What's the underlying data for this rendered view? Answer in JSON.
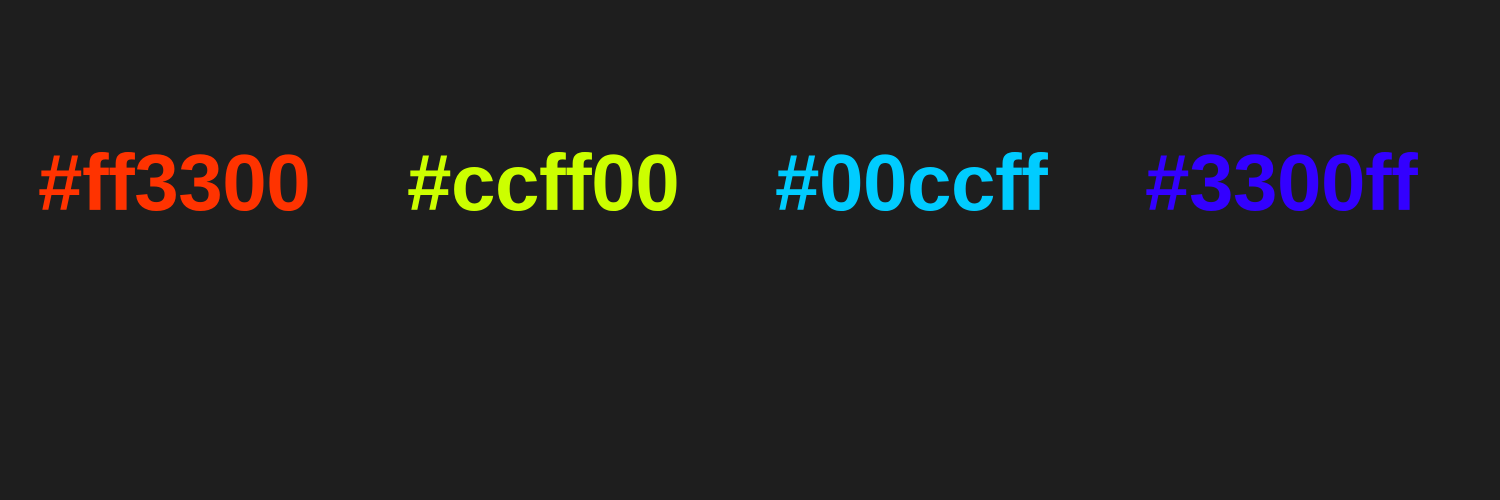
{
  "swatches": [
    {
      "label": "#ff3300",
      "color": "#ff3300"
    },
    {
      "label": "#ccff00",
      "color": "#ccff00"
    },
    {
      "label": "#00ccff",
      "color": "#00ccff"
    },
    {
      "label": "#3300ff",
      "color": "#3300ff"
    }
  ]
}
